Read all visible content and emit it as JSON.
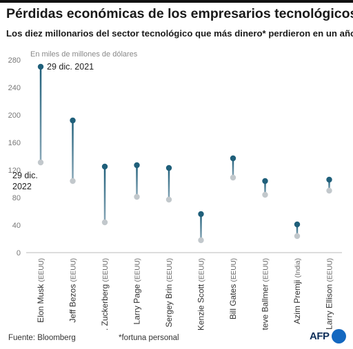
{
  "header": {
    "title": "Pérdidas económicas de los empresarios tecnológicos",
    "subtitle": "Los diez millonarios del sector tecnológico que más dinero* perdieron en un año"
  },
  "footer": {
    "source": "Fuente: Bloomberg",
    "note": "*fortuna personal",
    "logo": "AFP"
  },
  "colors": {
    "start_dot": "#1f5f7a",
    "end_dot": "#c2c8cc",
    "axis_text": "#777777",
    "grid": "#dddddd"
  },
  "chart_data": {
    "type": "dumbbell",
    "title": "Pérdidas económicas de los empresarios tecnológicos",
    "subtitle": "Los diez millonarios del sector tecnológico que más dinero* perdieron en un año",
    "ylabel": "En miles de millones de dólares",
    "ylim": [
      0,
      280
    ],
    "yticks": [
      0,
      40,
      80,
      120,
      160,
      200,
      240,
      280
    ],
    "grid": false,
    "categories": [
      {
        "name": "Elon Musk",
        "country": "(EEUU)"
      },
      {
        "name": "Jeff Bezos",
        "country": "(EEUU)"
      },
      {
        "name": "M. Zuckerberg",
        "country": "(EEUU)"
      },
      {
        "name": "Larry Page",
        "country": "(EEUU)"
      },
      {
        "name": "Sergey Brin",
        "country": "(EEUU)"
      },
      {
        "name": "MacKenzie Scott",
        "country": "(EEUU)"
      },
      {
        "name": "Bill Gates",
        "country": "(EEUU)"
      },
      {
        "name": "Steve Ballmer",
        "country": "(EEUU)"
      },
      {
        "name": "Azim Premji",
        "country": "(India)"
      },
      {
        "name": "Larry Ellison",
        "country": "(EEUU)"
      }
    ],
    "series": [
      {
        "name": "29 dic. 2021",
        "values": [
          270,
          192,
          125,
          127,
          123,
          56,
          137,
          104,
          41,
          106
        ]
      },
      {
        "name": "29 dic. 2022",
        "values": [
          131,
          104,
          44,
          81,
          77,
          18,
          109,
          84,
          24,
          90
        ]
      }
    ],
    "annotations": [
      {
        "text": "29 dic. 2021",
        "series": 0,
        "category": 0
      },
      {
        "text": "29 dic.",
        "series": 1,
        "category": 0
      },
      {
        "text": "2022",
        "series": 1,
        "category": 0
      }
    ]
  }
}
